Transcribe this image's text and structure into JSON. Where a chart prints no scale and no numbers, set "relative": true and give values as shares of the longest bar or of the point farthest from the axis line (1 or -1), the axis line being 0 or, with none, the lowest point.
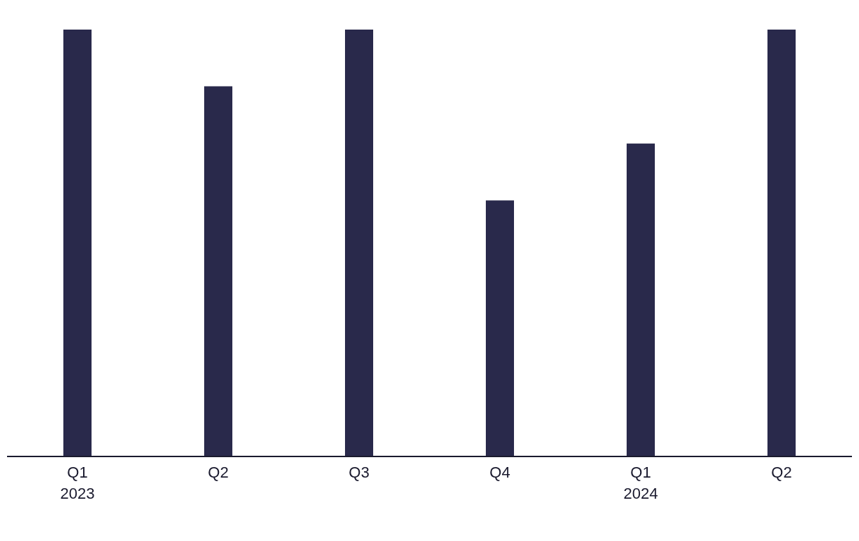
{
  "chart_data": {
    "type": "bar",
    "relative": true,
    "categories": [
      "Q1\n2023",
      "Q2",
      "Q3",
      "Q4",
      "Q1\n2024",
      "Q2"
    ],
    "values": [
      1,
      0.867,
      1,
      0.6,
      0.733,
      1
    ],
    "color": "#29294b",
    "grid": false,
    "legend": false
  }
}
